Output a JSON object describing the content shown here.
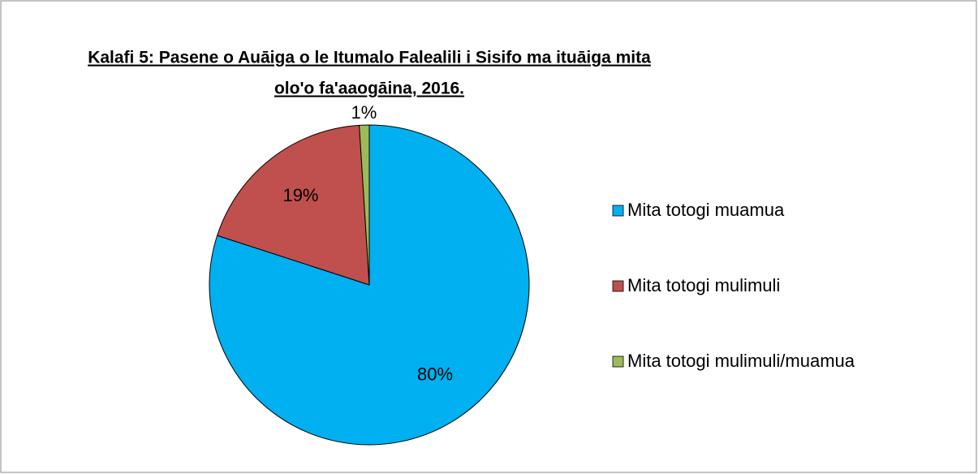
{
  "chart_data": {
    "type": "pie",
    "title": [
      "Kalafi 5: Pasene  o Auāiga o le Itumalo Falealili i Sisifo ma ituāiga mita",
      "olo'o fa'aaogāina, 2016."
    ],
    "categories": [
      "Mita totogi muamua",
      "Mita totogi mulimuli",
      "Mita totogi mulimuli/muamua"
    ],
    "values": [
      80,
      19,
      1
    ],
    "value_labels": [
      "80%",
      "19%",
      "1%"
    ],
    "colors": [
      "#00b0f0",
      "#c0504d",
      "#9bbb59"
    ],
    "legend": "right"
  }
}
